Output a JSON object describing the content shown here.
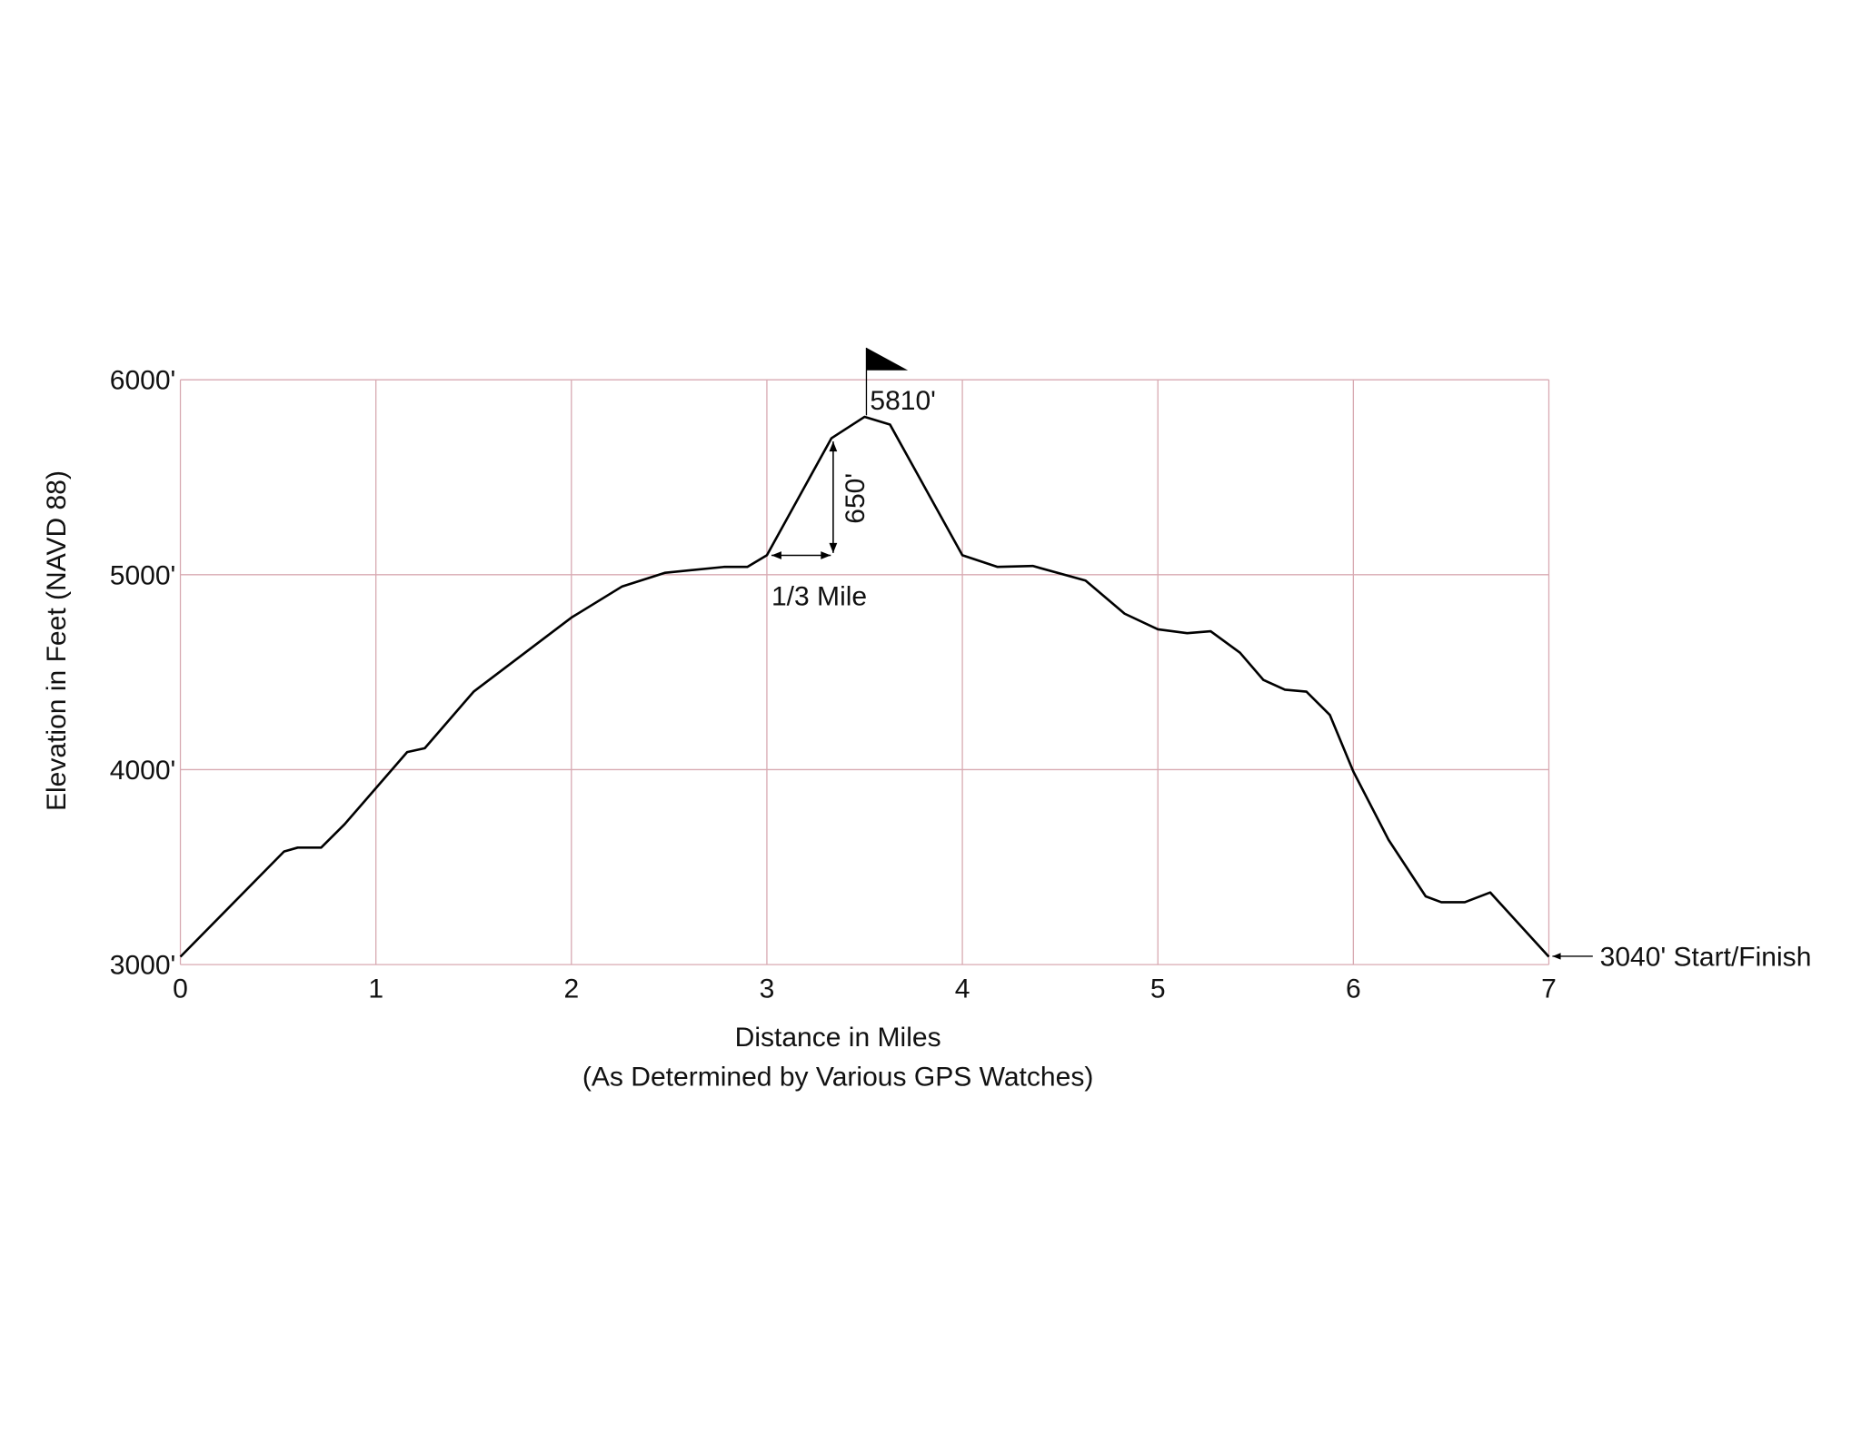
{
  "chart_data": {
    "type": "line",
    "x_label": "Distance in Miles",
    "x_sublabel": "(As Determined by Various GPS Watches)",
    "y_label": "Elevation in Feet (NAVD 88)",
    "x": [
      0,
      0.53,
      0.6,
      0.72,
      0.84,
      1.16,
      1.25,
      1.5,
      2.0,
      2.26,
      2.48,
      2.78,
      2.9,
      3.0,
      3.33,
      3.5,
      3.63,
      4.0,
      4.18,
      4.36,
      4.63,
      4.83,
      5.0,
      5.15,
      5.27,
      5.42,
      5.54,
      5.65,
      5.76,
      5.88,
      6.0,
      6.18,
      6.37,
      6.45,
      6.57,
      6.7,
      7.0
    ],
    "values": [
      3040,
      3580,
      3600,
      3600,
      3720,
      4090,
      4110,
      4400,
      4780,
      4940,
      5010,
      5040,
      5040,
      5100,
      5700,
      5810,
      5770,
      5100,
      5040,
      5045,
      4970,
      4800,
      4720,
      4700,
      4710,
      4600,
      4460,
      4410,
      4400,
      4280,
      3990,
      3640,
      3350,
      3320,
      3320,
      3370,
      3040
    ],
    "color": "#000000",
    "xlim": [
      0,
      7
    ],
    "ylim": [
      3000,
      6000
    ],
    "xticks": [
      0,
      1,
      2,
      3,
      4,
      5,
      6,
      7
    ],
    "yticks": [
      {
        "value": 3000,
        "label": "3000'"
      },
      {
        "value": 4000,
        "label": "4000'"
      },
      {
        "value": 5000,
        "label": "5000'"
      },
      {
        "value": 6000,
        "label": "6000'"
      }
    ],
    "grid": true,
    "annotations": {
      "summit": "5810'",
      "climb": "650'",
      "span": "1/3 Mile",
      "start": "3040' Start/Finish"
    }
  }
}
